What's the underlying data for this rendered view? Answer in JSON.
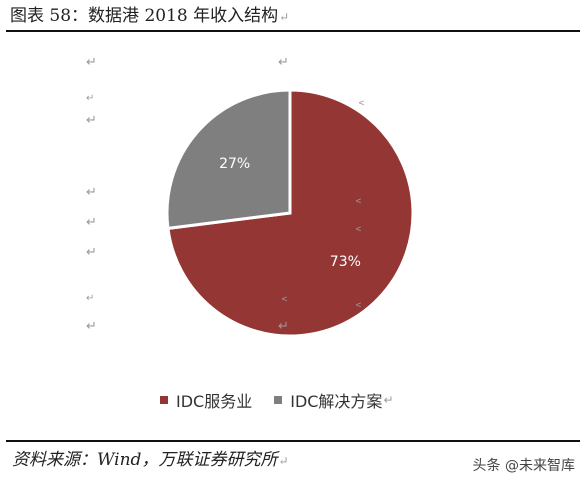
{
  "title": {
    "text": "图表 58：数据港 2018 年收入结构",
    "mark": "↵"
  },
  "return_mark": "↵",
  "small_mark": "↵",
  "side_mark": "﹤",
  "chart_data": {
    "type": "pie",
    "slices": [
      {
        "name": "IDC服务业",
        "value": 73,
        "label": "73%",
        "color": "#943634"
      },
      {
        "name": "IDC解决方案",
        "value": 27,
        "label": "27%",
        "color": "#7f7f7f"
      }
    ],
    "start_angle_deg": 0,
    "direction": "clockwise",
    "legend_position": "bottom"
  },
  "legend": {
    "items": [
      {
        "label": "IDC服务业",
        "color": "#943634"
      },
      {
        "label": "IDC解决方案",
        "color": "#7f7f7f",
        "mark": "↵"
      }
    ]
  },
  "source": {
    "text": "资料来源：Wind，万联证券研究所",
    "mark": "↵"
  },
  "watermark": {
    "text": "头条 @未来智库"
  }
}
